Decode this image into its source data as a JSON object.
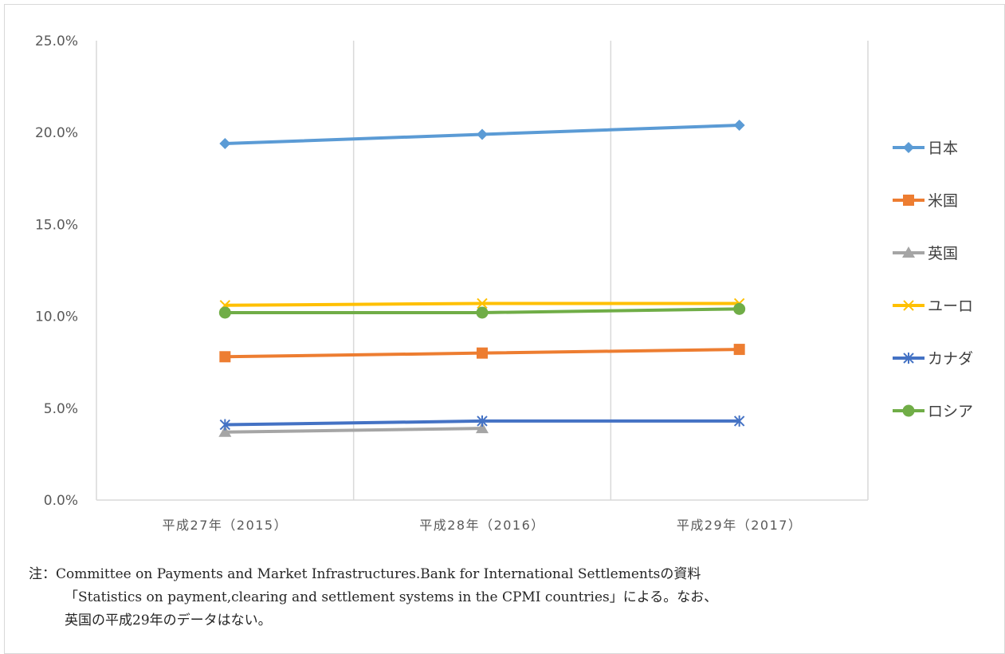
{
  "chart_data": {
    "type": "line",
    "categories": [
      "平成27年（2015）",
      "平成28年（2016）",
      "平成29年（2017）"
    ],
    "y_ticks": [
      "0.0%",
      "5.0%",
      "10.0%",
      "15.0%",
      "20.0%",
      "25.0%"
    ],
    "ylim": [
      0,
      25
    ],
    "grid": "vertical",
    "legend_position": "right",
    "series": [
      {
        "name": "日本",
        "values": [
          19.4,
          19.9,
          20.4
        ],
        "color": "#5b9bd5",
        "marker": "diamond"
      },
      {
        "name": "米国",
        "values": [
          7.8,
          8.0,
          8.2
        ],
        "color": "#ed7d31",
        "marker": "square"
      },
      {
        "name": "英国",
        "values": [
          3.7,
          3.9,
          null
        ],
        "color": "#a5a5a5",
        "marker": "triangle"
      },
      {
        "name": "ユーロ",
        "values": [
          10.6,
          10.7,
          10.7
        ],
        "color": "#ffc000",
        "marker": "x"
      },
      {
        "name": "カナダ",
        "values": [
          4.1,
          4.3,
          4.3
        ],
        "color": "#4472c4",
        "marker": "asterisk"
      },
      {
        "name": "ロシア",
        "values": [
          10.2,
          10.2,
          10.4
        ],
        "color": "#70ad47",
        "marker": "circle"
      }
    ]
  },
  "note": {
    "line1": "注：Committee on Payments and Market Infrastructures.Bank for International Settlementsの資料",
    "line2": "「Statistics on payment,clearing and settlement systems in the CPMI countries」による。なお、",
    "line3": "英国の平成29年のデータはない。"
  }
}
